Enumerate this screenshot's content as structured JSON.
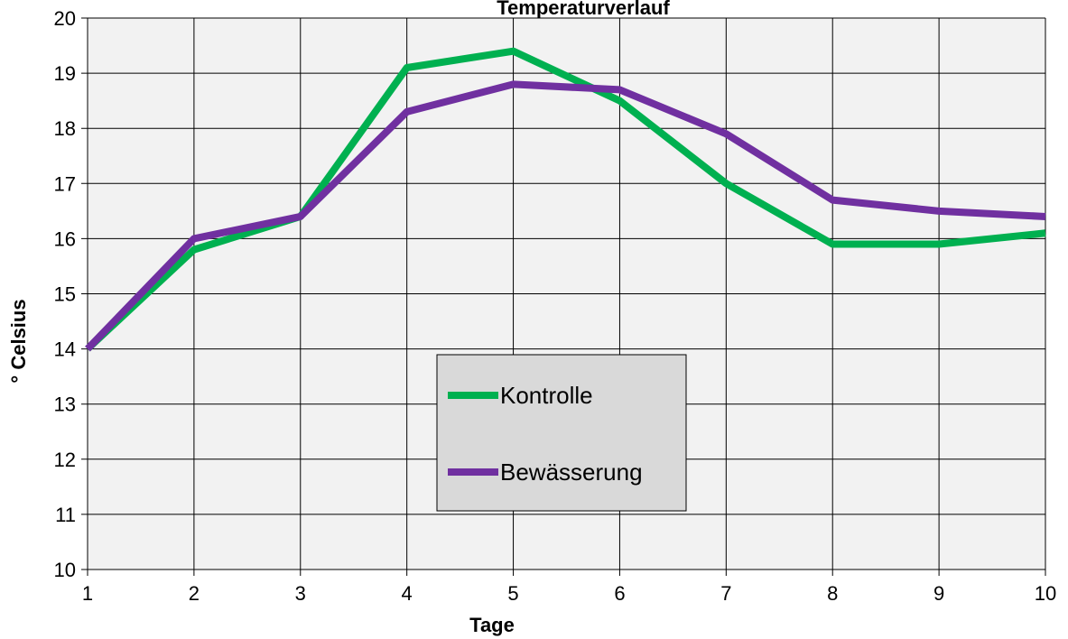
{
  "chart_data": {
    "type": "line",
    "title": "Temperaturverlauf",
    "xlabel": "Tage",
    "ylabel": "° Celsius",
    "x": [
      1,
      2,
      3,
      4,
      5,
      6,
      7,
      8,
      9,
      10
    ],
    "xlim": [
      1,
      10
    ],
    "ylim": [
      10,
      20
    ],
    "yticks": [
      10,
      11,
      12,
      13,
      14,
      15,
      16,
      17,
      18,
      19,
      20
    ],
    "grid": true,
    "legend_position": "center",
    "series": [
      {
        "name": "Kontrolle",
        "color": "#00b050",
        "values": [
          14.0,
          15.8,
          16.4,
          19.1,
          19.4,
          18.5,
          17.0,
          15.9,
          15.9,
          16.1
        ]
      },
      {
        "name": "Bewässerung",
        "color": "#7030a0",
        "values": [
          14.0,
          16.0,
          16.4,
          18.3,
          18.8,
          18.7,
          17.9,
          16.7,
          16.5,
          16.4
        ]
      }
    ],
    "colors": {
      "plot_background": "#f2f2f2",
      "legend_background": "#d9d9d9",
      "grid": "#000000"
    }
  }
}
